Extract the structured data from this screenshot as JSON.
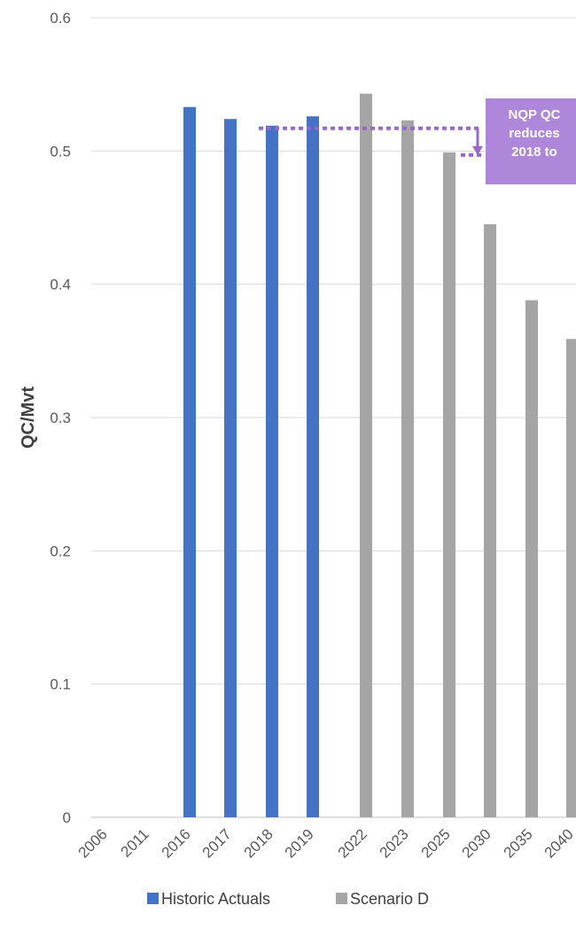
{
  "chart_data": {
    "type": "bar",
    "ylabel": "QC/Mvt",
    "ylim": [
      0,
      0.6
    ],
    "yticks": [
      "0",
      "0.1",
      "0.2",
      "0.3",
      "0.4",
      "0.5",
      "0.6"
    ],
    "grid": true,
    "categories": [
      "2006",
      "2011",
      "2016",
      "2017",
      "2018",
      "2019",
      "2022",
      "2023",
      "2025",
      "2030",
      "2035",
      "2040"
    ],
    "series": [
      {
        "name": "Historic Actuals",
        "color": "#4472C4",
        "values": [
          null,
          null,
          0.533,
          0.524,
          0.519,
          0.526,
          null,
          null,
          null,
          null,
          null,
          null
        ]
      },
      {
        "name": "Scenario D",
        "color": "#A5A5A5",
        "values": [
          null,
          null,
          null,
          null,
          null,
          null,
          0.543,
          0.523,
          0.499,
          0.445,
          0.388,
          0.359
        ]
      }
    ],
    "legend_position": "bottom",
    "annotation": {
      "lines": [
        "NQP QC",
        "reduces",
        "2018 to"
      ],
      "color": "#9966CC",
      "from_value": 0.517,
      "to_value": 0.497
    }
  }
}
